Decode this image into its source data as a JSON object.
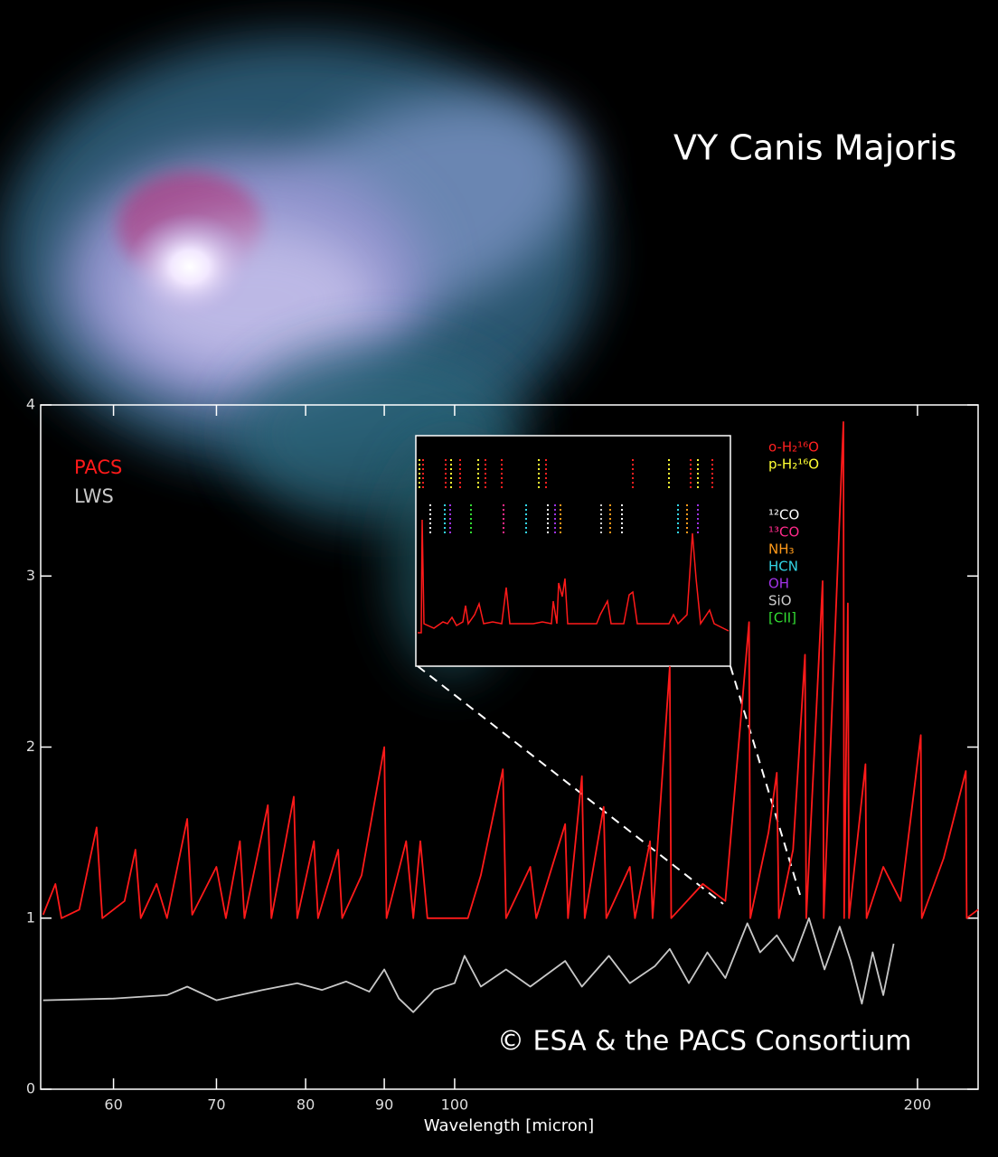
{
  "chart_data": {
    "type": "line",
    "title": "VY Canis Majoris",
    "credit": "© ESA & the PACS Consortium",
    "x_label": "Wavelength [micron]",
    "xscale": "log",
    "xlim": [
      53.8,
      219
    ],
    "ylim": [
      0,
      4
    ],
    "xticks": [
      60,
      70,
      80,
      90,
      100,
      200
    ],
    "yticks": [
      0,
      1,
      2,
      3,
      4
    ],
    "series": [
      {
        "name": "PACS",
        "color": "#ff1a1a",
        "x": [
          54,
          55,
          55.5,
          57,
          58.5,
          59,
          61,
          62,
          62.5,
          64,
          65,
          67,
          67.5,
          70,
          71,
          72.5,
          73,
          75.6,
          76,
          78.6,
          79,
          81,
          81.5,
          84,
          84.5,
          87,
          90,
          90.3,
          93,
          94,
          95,
          96,
          98,
          102,
          104,
          107.5,
          108,
          112,
          113,
          118,
          118.5,
          121,
          121.5,
          125,
          125.5,
          130,
          131,
          134,
          134.5,
          138,
          138.3,
          145,
          150,
          155.4,
          155.7,
          160,
          162,
          162.5,
          166,
          169,
          169.3,
          173.5,
          173.8,
          179,
          179.2,
          180.2,
          180.5,
          185,
          185.3,
          190,
          195,
          201,
          201.3,
          208,
          215,
          215.3,
          219
        ],
        "values": [
          1.02,
          1.2,
          1.0,
          1.05,
          1.53,
          1.0,
          1.1,
          1.4,
          1.0,
          1.2,
          1.0,
          1.58,
          1.02,
          1.3,
          1.0,
          1.45,
          1.0,
          1.66,
          1.0,
          1.71,
          1.0,
          1.45,
          1.0,
          1.4,
          1.0,
          1.25,
          2.0,
          1.0,
          1.45,
          1.0,
          1.45,
          1.0,
          1.0,
          1.0,
          1.25,
          1.87,
          1.0,
          1.3,
          1.0,
          1.55,
          1.0,
          1.83,
          1.0,
          1.65,
          1.0,
          1.3,
          1.0,
          1.45,
          1.0,
          2.47,
          1.0,
          1.2,
          1.1,
          2.73,
          1.0,
          1.5,
          1.85,
          1.0,
          1.4,
          2.54,
          1.0,
          2.97,
          1.0,
          3.9,
          1.0,
          2.84,
          1.0,
          1.9,
          1.0,
          1.3,
          1.1,
          2.07,
          1.0,
          1.35,
          1.86,
          1.0,
          1.05
        ]
      },
      {
        "name": "LWS",
        "color": "#c8c8c8",
        "x": [
          54,
          60,
          65,
          67,
          70,
          75,
          79,
          82,
          85,
          88,
          90,
          92,
          94,
          97,
          100,
          101.5,
          104,
          108,
          112,
          118,
          121,
          126,
          130,
          135,
          138,
          142,
          146,
          150,
          155,
          158,
          162,
          166,
          170,
          174,
          178,
          181,
          184,
          187,
          190,
          193
        ],
        "values": [
          0.52,
          0.53,
          0.55,
          0.6,
          0.52,
          0.58,
          0.62,
          0.58,
          0.63,
          0.57,
          0.7,
          0.53,
          0.45,
          0.58,
          0.62,
          0.78,
          0.6,
          0.7,
          0.6,
          0.75,
          0.6,
          0.78,
          0.62,
          0.72,
          0.82,
          0.62,
          0.8,
          0.65,
          0.97,
          0.8,
          0.9,
          0.75,
          1.0,
          0.7,
          0.95,
          0.75,
          0.5,
          0.8,
          0.55,
          0.85
        ]
      }
    ],
    "species": [
      {
        "name": "o-H₂¹⁶O",
        "color": "#ff2020"
      },
      {
        "name": "p-H₂¹⁶O",
        "color": "#ffff33"
      },
      {
        "name": "¹²CO",
        "color": "#ffffff"
      },
      {
        "name": "¹³CO",
        "color": "#ff2a8a"
      },
      {
        "name": "NH₃",
        "color": "#ff9a1a"
      },
      {
        "name": "HCN",
        "color": "#33d6e6"
      },
      {
        "name": "OH",
        "color": "#a033e6"
      },
      {
        "name": "SiO",
        "color": "#cccccc"
      },
      {
        "name": "[CII]",
        "color": "#33dd33"
      }
    ]
  }
}
